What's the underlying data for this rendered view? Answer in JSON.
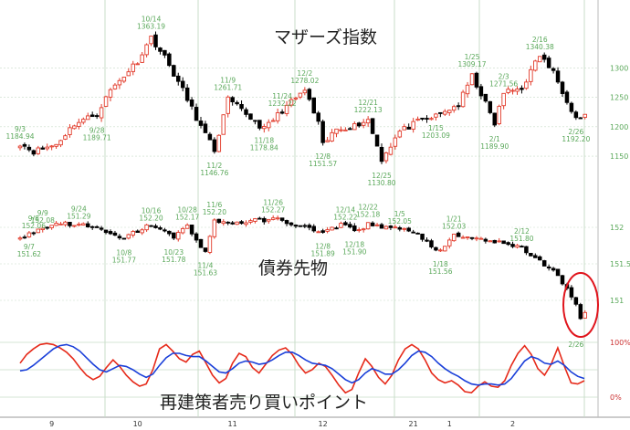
{
  "colors": {
    "up": "#e23b2b",
    "down": "#000000",
    "grid": "#c8dcc8",
    "label": "#5aa85a",
    "osc_red": "#e62a1a",
    "osc_blue": "#1a3fd9",
    "circle": "#e0141c"
  },
  "chart_data": [
    {
      "id": "mothers",
      "type": "candlestick",
      "title": "マザーズ指数",
      "y_ticks": [
        1150,
        1200,
        1250,
        1300
      ],
      "ylim": [
        1105,
        1400
      ],
      "grid": true,
      "annotations": [
        {
          "date": "9/3",
          "value": "1184.94",
          "i": 0
        },
        {
          "date": "9/28",
          "value": "1189.71",
          "i": 17
        },
        {
          "date": "10/14",
          "value": "1363.19",
          "i": 29
        },
        {
          "date": "11/2",
          "value": "1146.76",
          "i": 43
        },
        {
          "date": "11/9",
          "value": "1261.71",
          "i": 46
        },
        {
          "date": "11/18",
          "value": "1178.84",
          "i": 54
        },
        {
          "date": "11/24",
          "value": "1232.22",
          "i": 58
        },
        {
          "date": "12/2",
          "value": "1278.02",
          "i": 63
        },
        {
          "date": "12/8",
          "value": "1151.57",
          "i": 67
        },
        {
          "date": "12/21",
          "value": "1222.13",
          "i": 77
        },
        {
          "date": "12/25",
          "value": "1130.80",
          "i": 80
        },
        {
          "date": "1/15",
          "value": "1203.09",
          "i": 92
        },
        {
          "date": "1/25",
          "value": "1309.17",
          "i": 100
        },
        {
          "date": "2/1",
          "value": "1189.90",
          "i": 105
        },
        {
          "date": "2/3",
          "value": "1271.56",
          "i": 107
        },
        {
          "date": "2/16",
          "value": "1340.38",
          "i": 115
        },
        {
          "date": "2/26",
          "value": "1192.20",
          "i": 123
        }
      ]
    },
    {
      "id": "bond",
      "type": "candlestick",
      "title": "債券先物",
      "y_ticks": [
        "151",
        "151.5",
        "152"
      ],
      "ylim": [
        150.55,
        152.55
      ],
      "grid": true,
      "annotations": [
        {
          "date": "9/7",
          "value": "151.62",
          "i": 2
        },
        {
          "date": "9/9",
          "value": "152.08",
          "i": 5
        },
        {
          "date": "9/8",
          "value": "152.06",
          "i": 3
        },
        {
          "date": "9/24",
          "value": "151.29",
          "i": 13
        },
        {
          "date": "10/8",
          "value": "151.77",
          "i": 23
        },
        {
          "date": "10/16",
          "value": "152.20",
          "i": 29
        },
        {
          "date": "10/23",
          "value": "151.78",
          "i": 34
        },
        {
          "date": "10/28",
          "value": "152.17",
          "i": 37
        },
        {
          "date": "11/4",
          "value": "151.63",
          "i": 41
        },
        {
          "date": "11/6",
          "value": "152.20",
          "i": 43
        },
        {
          "date": "11/26",
          "value": "152.27",
          "i": 56
        },
        {
          "date": "12/8",
          "value": "151.89",
          "i": 67
        },
        {
          "date": "12/14",
          "value": "152.22",
          "i": 72
        },
        {
          "date": "12/18",
          "value": "151.90",
          "i": 74
        },
        {
          "date": "12/22",
          "value": "152.18",
          "i": 77
        },
        {
          "date": "1/5",
          "value": "152.05",
          "i": 84
        },
        {
          "date": "1/18",
          "value": "151.56",
          "i": 93
        },
        {
          "date": "1/21",
          "value": "152.03",
          "i": 96
        },
        {
          "date": "2/12",
          "value": "151.80",
          "i": 111
        },
        {
          "date": "2/26",
          "value": "",
          "i": 123
        }
      ]
    },
    {
      "id": "oscillator",
      "type": "line",
      "title": "再建策者売り買いポイント",
      "y_ticks": [
        "100%",
        "0%"
      ],
      "ylim": [
        0,
        100
      ],
      "series": [
        {
          "color_key": "osc_red",
          "values": [
            62,
            78,
            88,
            96,
            98,
            96,
            90,
            82,
            70,
            54,
            40,
            32,
            38,
            54,
            68,
            56,
            40,
            28,
            20,
            24,
            50,
            88,
            96,
            84,
            70,
            64,
            78,
            84,
            62,
            40,
            26,
            34,
            62,
            80,
            74,
            54,
            44,
            60,
            76,
            86,
            90,
            78,
            58,
            44,
            50,
            62,
            56,
            40,
            22,
            8,
            14,
            44,
            70,
            56,
            36,
            24,
            40,
            68,
            88,
            96,
            88,
            68,
            44,
            32,
            26,
            30,
            22,
            10,
            8,
            20,
            28,
            20,
            18,
            30,
            58,
            80,
            94,
            78,
            52,
            40,
            60,
            90,
            56,
            26,
            24,
            30
          ]
        },
        {
          "color_key": "osc_blue",
          "values": [
            48,
            50,
            58,
            68,
            78,
            88,
            94,
            96,
            92,
            84,
            72,
            60,
            50,
            46,
            52,
            58,
            56,
            50,
            42,
            36,
            42,
            58,
            72,
            80,
            80,
            76,
            74,
            74,
            66,
            56,
            46,
            44,
            52,
            62,
            66,
            64,
            60,
            62,
            68,
            76,
            82,
            82,
            76,
            68,
            62,
            60,
            58,
            52,
            42,
            32,
            26,
            32,
            44,
            52,
            48,
            42,
            42,
            50,
            62,
            76,
            84,
            82,
            74,
            62,
            52,
            44,
            38,
            30,
            24,
            22,
            24,
            24,
            22,
            24,
            34,
            50,
            66,
            74,
            70,
            62,
            60,
            66,
            58,
            46,
            38,
            34
          ]
        }
      ]
    }
  ],
  "x_labels": [
    {
      "label": "9",
      "i": 7
    },
    {
      "label": "10",
      "i": 26
    },
    {
      "label": "11",
      "i": 47
    },
    {
      "label": "12",
      "i": 67
    },
    {
      "label": "21",
      "i": 87
    },
    {
      "label": "1",
      "i": 95
    },
    {
      "label": "2",
      "i": 109
    }
  ]
}
